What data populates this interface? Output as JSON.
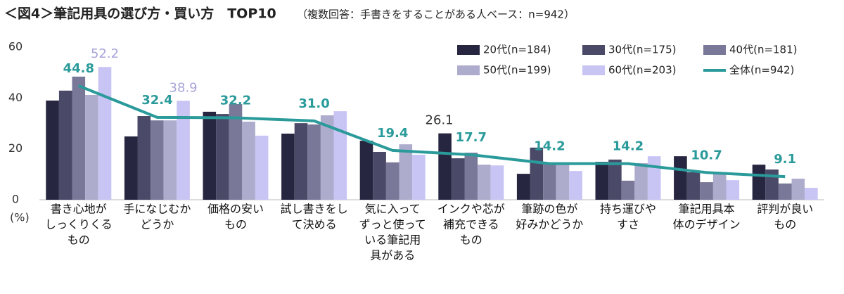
{
  "chart_data": {
    "type": "bar",
    "title": "＜図4＞筆記用具の選び方・買い方　TOP10",
    "subtitle": "（複数回答：手書きをすることがある人ベース：n=942）",
    "y_label": "(%)",
    "categories": [
      [
        "書き心地が",
        "しっくりくる",
        "もの"
      ],
      [
        "手になじむか",
        "どうか"
      ],
      [
        "価格の安い",
        "もの"
      ],
      [
        "試し書きをし",
        "て決める"
      ],
      [
        "気に入って",
        "ずっと使って",
        "いる筆記用",
        "具がある"
      ],
      [
        "インクや芯が",
        "補充できる",
        "もの"
      ],
      [
        "筆跡の色が",
        "好みかどうか"
      ],
      [
        "持ち運びや",
        "すさ"
      ],
      [
        "筆記用具本",
        "体のデザイン"
      ],
      [
        "評判が良い",
        "もの"
      ]
    ],
    "ylim": [
      0,
      60
    ],
    "yticks": [
      0,
      20,
      40,
      60
    ],
    "series": [
      {
        "name": "20代(n=184)",
        "color": "#262640",
        "values": [
          39.0,
          24.9,
          34.6,
          26.0,
          23.2,
          26.1,
          10.2,
          14.9,
          17.1,
          13.8
        ],
        "value_labels": [
          null,
          null,
          null,
          null,
          null,
          "26.1",
          null,
          null,
          null,
          null
        ]
      },
      {
        "name": "30代(n=175)",
        "color": "#4a4a68",
        "values": [
          42.9,
          32.9,
          33.7,
          30.1,
          18.8,
          16.3,
          20.5,
          15.8,
          10.8,
          11.9
        ]
      },
      {
        "name": "40代(n=181)",
        "color": "#7a7898",
        "values": [
          48.4,
          31.2,
          37.6,
          29.6,
          14.7,
          18.5,
          14.7,
          7.5,
          6.9,
          6.4
        ]
      },
      {
        "name": "50代(n=199)",
        "color": "#aeaccc",
        "values": [
          41.2,
          31.2,
          30.7,
          33.2,
          21.8,
          13.8,
          14.7,
          14.4,
          10.2,
          8.3
        ]
      },
      {
        "name": "60代(n=203)",
        "color": "#c8c4f4",
        "values": [
          52.2,
          38.9,
          25.2,
          34.8,
          17.7,
          13.5,
          11.3,
          17.1,
          7.7,
          4.7
        ],
        "value_labels": [
          "52.2",
          "38.9",
          null,
          null,
          null,
          null,
          null,
          null,
          null,
          null
        ]
      },
      {
        "name": "全体(n=942)",
        "type": "line",
        "color": "#2a9a9a",
        "values": [
          44.8,
          32.4,
          32.2,
          31.0,
          19.4,
          17.7,
          14.2,
          14.2,
          10.7,
          9.1
        ],
        "value_labels": [
          "44.8",
          "32.4",
          "32.2",
          "31.0",
          "19.4",
          "17.7",
          "14.2",
          "14.2",
          "10.7",
          "9.1"
        ]
      }
    ]
  }
}
